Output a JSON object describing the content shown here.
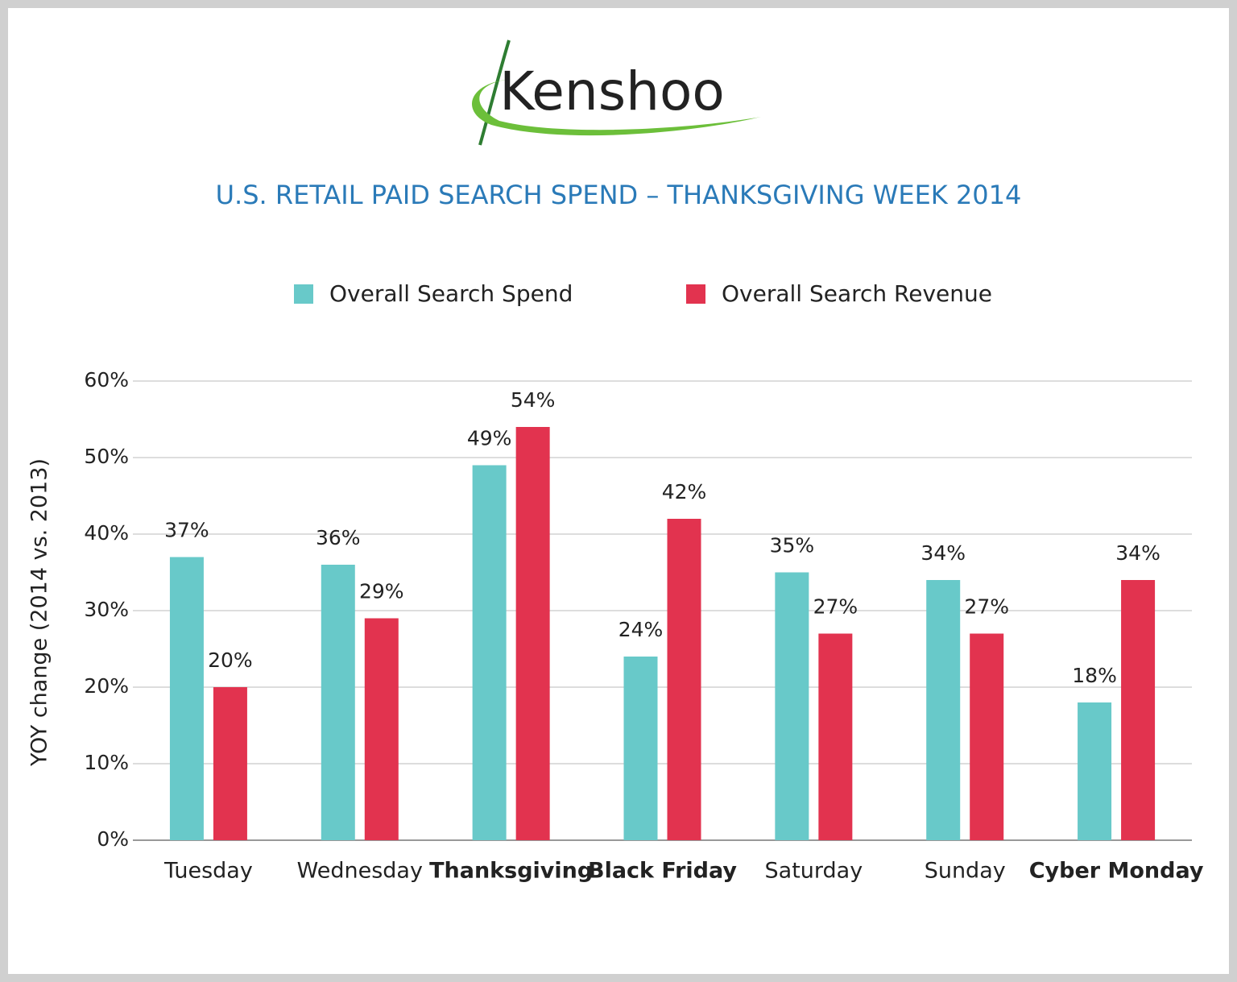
{
  "logo": "Kenshoo",
  "chart_data": {
    "type": "bar",
    "title": "U.S. RETAIL PAID SEARCH SPEND – THANKSGIVING WEEK 2014",
    "y_label": "YOY change (2014 vs. 2013)",
    "categories": [
      "Tuesday",
      "Wednesday",
      "Thanksgiving",
      "Black Friday",
      "Saturday",
      "Sunday",
      "Cyber Monday"
    ],
    "category_bold": [
      false,
      false,
      true,
      true,
      false,
      false,
      true
    ],
    "series": [
      {
        "name": "Overall Search Spend",
        "color": "#68c9c9",
        "values": [
          37,
          36,
          49,
          24,
          35,
          34,
          18
        ],
        "value_labels": [
          "37%",
          "36%",
          "49%",
          "24%",
          "35%",
          "34%",
          "18%"
        ]
      },
      {
        "name": "Overall Search Revenue",
        "color": "#e2334f",
        "values": [
          20,
          29,
          54,
          42,
          27,
          27,
          34
        ],
        "value_labels": [
          "20%",
          "29%",
          "54%",
          "42%",
          "27%",
          "27%",
          "34%"
        ]
      }
    ],
    "ylim": [
      0,
      60
    ],
    "yticks": [
      {
        "value": 0,
        "label": "0%"
      },
      {
        "value": 10,
        "label": "10%"
      },
      {
        "value": 20,
        "label": "20%"
      },
      {
        "value": 30,
        "label": "30%"
      },
      {
        "value": 40,
        "label": "40%"
      },
      {
        "value": 50,
        "label": "50%"
      },
      {
        "value": 60,
        "label": "60%"
      }
    ],
    "grid": true,
    "legend": "top"
  }
}
